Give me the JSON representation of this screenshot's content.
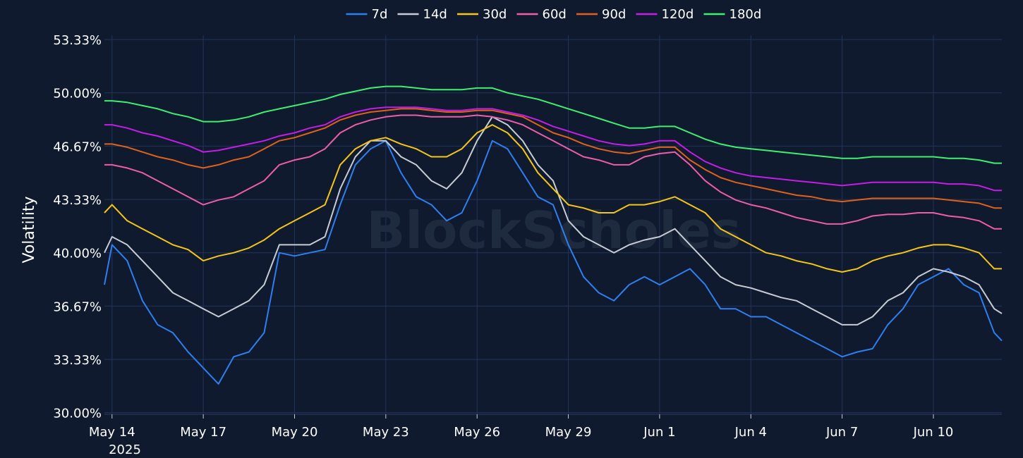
{
  "chart_data": {
    "type": "line",
    "title": "",
    "xlabel": "",
    "ylabel": "Volatility",
    "watermark": "BlockScholes",
    "x_ticks": [
      "May 14",
      "May 17",
      "May 20",
      "May 23",
      "May 26",
      "May 29",
      "Jun 1",
      "Jun 4",
      "Jun 7",
      "Jun 10"
    ],
    "x_tick_dates": [
      "2025-05-14",
      "2025-05-17",
      "2025-05-20",
      "2025-05-23",
      "2025-05-26",
      "2025-05-29",
      "2025-06-01",
      "2025-06-04",
      "2025-06-07",
      "2025-06-10"
    ],
    "x_year_label": "2025",
    "x_range": [
      "2025-05-13T18:00",
      "2025-06-12T06:00"
    ],
    "y_ticks": [
      "30.00%",
      "33.33%",
      "36.67%",
      "40.00%",
      "43.33%",
      "46.67%",
      "50.00%",
      "53.33%"
    ],
    "y_tick_values": [
      30.0,
      33.33,
      36.67,
      40.0,
      43.33,
      46.67,
      50.0,
      53.33
    ],
    "ylim": [
      29.9,
      53.6
    ],
    "grid": true,
    "legend_position": "top-center",
    "x": [
      "2025-05-13T18:00",
      "2025-05-14T00:00",
      "2025-05-14T12:00",
      "2025-05-15T00:00",
      "2025-05-15T12:00",
      "2025-05-16T00:00",
      "2025-05-16T12:00",
      "2025-05-17T00:00",
      "2025-05-17T12:00",
      "2025-05-18T00:00",
      "2025-05-18T12:00",
      "2025-05-19T00:00",
      "2025-05-19T12:00",
      "2025-05-20T00:00",
      "2025-05-20T12:00",
      "2025-05-21T00:00",
      "2025-05-21T12:00",
      "2025-05-22T00:00",
      "2025-05-22T12:00",
      "2025-05-23T00:00",
      "2025-05-23T12:00",
      "2025-05-24T00:00",
      "2025-05-24T12:00",
      "2025-05-25T00:00",
      "2025-05-25T12:00",
      "2025-05-26T00:00",
      "2025-05-26T12:00",
      "2025-05-27T00:00",
      "2025-05-27T12:00",
      "2025-05-28T00:00",
      "2025-05-28T12:00",
      "2025-05-29T00:00",
      "2025-05-29T12:00",
      "2025-05-30T00:00",
      "2025-05-30T12:00",
      "2025-05-31T00:00",
      "2025-05-31T12:00",
      "2025-06-01T00:00",
      "2025-06-01T12:00",
      "2025-06-02T00:00",
      "2025-06-02T12:00",
      "2025-06-03T00:00",
      "2025-06-03T12:00",
      "2025-06-04T00:00",
      "2025-06-04T12:00",
      "2025-06-05T00:00",
      "2025-06-05T12:00",
      "2025-06-06T00:00",
      "2025-06-06T12:00",
      "2025-06-07T00:00",
      "2025-06-07T12:00",
      "2025-06-08T00:00",
      "2025-06-08T12:00",
      "2025-06-09T00:00",
      "2025-06-09T12:00",
      "2025-06-10T00:00",
      "2025-06-10T12:00",
      "2025-06-11T00:00",
      "2025-06-11T12:00",
      "2025-06-12T00:00",
      "2025-06-12T06:00"
    ],
    "series": [
      {
        "name": "7d",
        "color": "#2f7ff0",
        "values": [
          38.0,
          40.5,
          39.5,
          37.0,
          35.5,
          35.0,
          33.8,
          32.8,
          31.8,
          33.5,
          33.8,
          35.0,
          40.0,
          39.8,
          40.0,
          40.2,
          43.0,
          45.5,
          46.5,
          47.0,
          45.0,
          43.5,
          43.0,
          42.0,
          42.5,
          44.5,
          47.0,
          46.5,
          45.0,
          43.5,
          43.0,
          40.5,
          38.5,
          37.5,
          37.0,
          38.0,
          38.5,
          38.0,
          38.5,
          39.0,
          38.0,
          36.5,
          36.5,
          36.0,
          36.0,
          35.5,
          35.0,
          34.5,
          34.0,
          33.5,
          33.8,
          34.0,
          35.5,
          36.5,
          38.0,
          38.5,
          39.0,
          38.0,
          37.5,
          35.0,
          34.5
        ]
      },
      {
        "name": "14d",
        "color": "#c8ccd4",
        "values": [
          40.0,
          41.0,
          40.5,
          39.5,
          38.5,
          37.5,
          37.0,
          36.5,
          36.0,
          36.5,
          37.0,
          38.0,
          40.5,
          40.5,
          40.5,
          41.0,
          44.0,
          46.0,
          47.0,
          47.0,
          46.0,
          45.5,
          44.5,
          44.0,
          45.0,
          47.0,
          48.5,
          48.0,
          47.0,
          45.5,
          44.5,
          42.0,
          41.0,
          40.5,
          40.0,
          40.5,
          40.8,
          41.0,
          41.5,
          40.5,
          39.5,
          38.5,
          38.0,
          37.8,
          37.5,
          37.2,
          37.0,
          36.5,
          36.0,
          35.5,
          35.5,
          36.0,
          37.0,
          37.5,
          38.5,
          39.0,
          38.8,
          38.5,
          38.0,
          36.5,
          36.2
        ]
      },
      {
        "name": "30d",
        "color": "#f5c518",
        "values": [
          42.5,
          43.0,
          42.0,
          41.5,
          41.0,
          40.5,
          40.2,
          39.5,
          39.8,
          40.0,
          40.3,
          40.8,
          41.5,
          42.0,
          42.5,
          43.0,
          45.5,
          46.5,
          47.0,
          47.2,
          46.8,
          46.5,
          46.0,
          46.0,
          46.5,
          47.5,
          48.0,
          47.5,
          46.5,
          45.0,
          44.0,
          43.0,
          42.8,
          42.5,
          42.5,
          43.0,
          43.0,
          43.2,
          43.5,
          43.0,
          42.5,
          41.5,
          41.0,
          40.5,
          40.0,
          39.8,
          39.5,
          39.3,
          39.0,
          38.8,
          39.0,
          39.5,
          39.8,
          40.0,
          40.3,
          40.5,
          40.5,
          40.3,
          40.0,
          39.0,
          39.0
        ]
      },
      {
        "name": "60d",
        "color": "#ee5ea8",
        "values": [
          45.5,
          45.5,
          45.3,
          45.0,
          44.5,
          44.0,
          43.5,
          43.0,
          43.3,
          43.5,
          44.0,
          44.5,
          45.5,
          45.8,
          46.0,
          46.5,
          47.5,
          48.0,
          48.3,
          48.5,
          48.6,
          48.6,
          48.5,
          48.5,
          48.5,
          48.6,
          48.5,
          48.3,
          48.0,
          47.5,
          47.0,
          46.5,
          46.0,
          45.8,
          45.5,
          45.5,
          46.0,
          46.2,
          46.3,
          45.5,
          44.5,
          43.8,
          43.3,
          43.0,
          42.8,
          42.5,
          42.2,
          42.0,
          41.8,
          41.8,
          42.0,
          42.3,
          42.4,
          42.4,
          42.5,
          42.5,
          42.3,
          42.2,
          42.0,
          41.5,
          41.5
        ]
      },
      {
        "name": "90d",
        "color": "#e0611a",
        "values": [
          46.8,
          46.8,
          46.6,
          46.3,
          46.0,
          45.8,
          45.5,
          45.3,
          45.5,
          45.8,
          46.0,
          46.5,
          47.0,
          47.2,
          47.5,
          47.8,
          48.3,
          48.6,
          48.8,
          48.9,
          49.0,
          49.0,
          48.9,
          48.8,
          48.8,
          48.9,
          48.9,
          48.7,
          48.5,
          48.0,
          47.5,
          47.2,
          46.8,
          46.5,
          46.3,
          46.2,
          46.4,
          46.6,
          46.6,
          45.8,
          45.2,
          44.7,
          44.4,
          44.2,
          44.0,
          43.8,
          43.6,
          43.5,
          43.3,
          43.2,
          43.3,
          43.4,
          43.4,
          43.4,
          43.4,
          43.4,
          43.3,
          43.2,
          43.1,
          42.8,
          42.8
        ]
      },
      {
        "name": "120d",
        "color": "#c41ee6",
        "values": [
          48.0,
          48.0,
          47.8,
          47.5,
          47.3,
          47.0,
          46.7,
          46.3,
          46.4,
          46.6,
          46.8,
          47.0,
          47.3,
          47.5,
          47.8,
          48.0,
          48.5,
          48.8,
          49.0,
          49.1,
          49.1,
          49.1,
          49.0,
          48.9,
          48.9,
          49.0,
          49.0,
          48.8,
          48.6,
          48.3,
          47.9,
          47.6,
          47.3,
          47.0,
          46.8,
          46.7,
          46.8,
          47.0,
          47.0,
          46.3,
          45.7,
          45.3,
          45.0,
          44.8,
          44.7,
          44.6,
          44.5,
          44.4,
          44.3,
          44.2,
          44.3,
          44.4,
          44.4,
          44.4,
          44.4,
          44.4,
          44.3,
          44.3,
          44.2,
          43.9,
          43.9
        ]
      },
      {
        "name": "180d",
        "color": "#3ff06e",
        "values": [
          49.5,
          49.5,
          49.4,
          49.2,
          49.0,
          48.7,
          48.5,
          48.2,
          48.2,
          48.3,
          48.5,
          48.8,
          49.0,
          49.2,
          49.4,
          49.6,
          49.9,
          50.1,
          50.3,
          50.4,
          50.4,
          50.3,
          50.2,
          50.2,
          50.2,
          50.3,
          50.3,
          50.0,
          49.8,
          49.6,
          49.3,
          49.0,
          48.7,
          48.4,
          48.1,
          47.8,
          47.8,
          47.9,
          47.9,
          47.5,
          47.1,
          46.8,
          46.6,
          46.5,
          46.4,
          46.3,
          46.2,
          46.1,
          46.0,
          45.9,
          45.9,
          46.0,
          46.0,
          46.0,
          46.0,
          46.0,
          45.9,
          45.9,
          45.8,
          45.6,
          45.6
        ]
      }
    ]
  }
}
